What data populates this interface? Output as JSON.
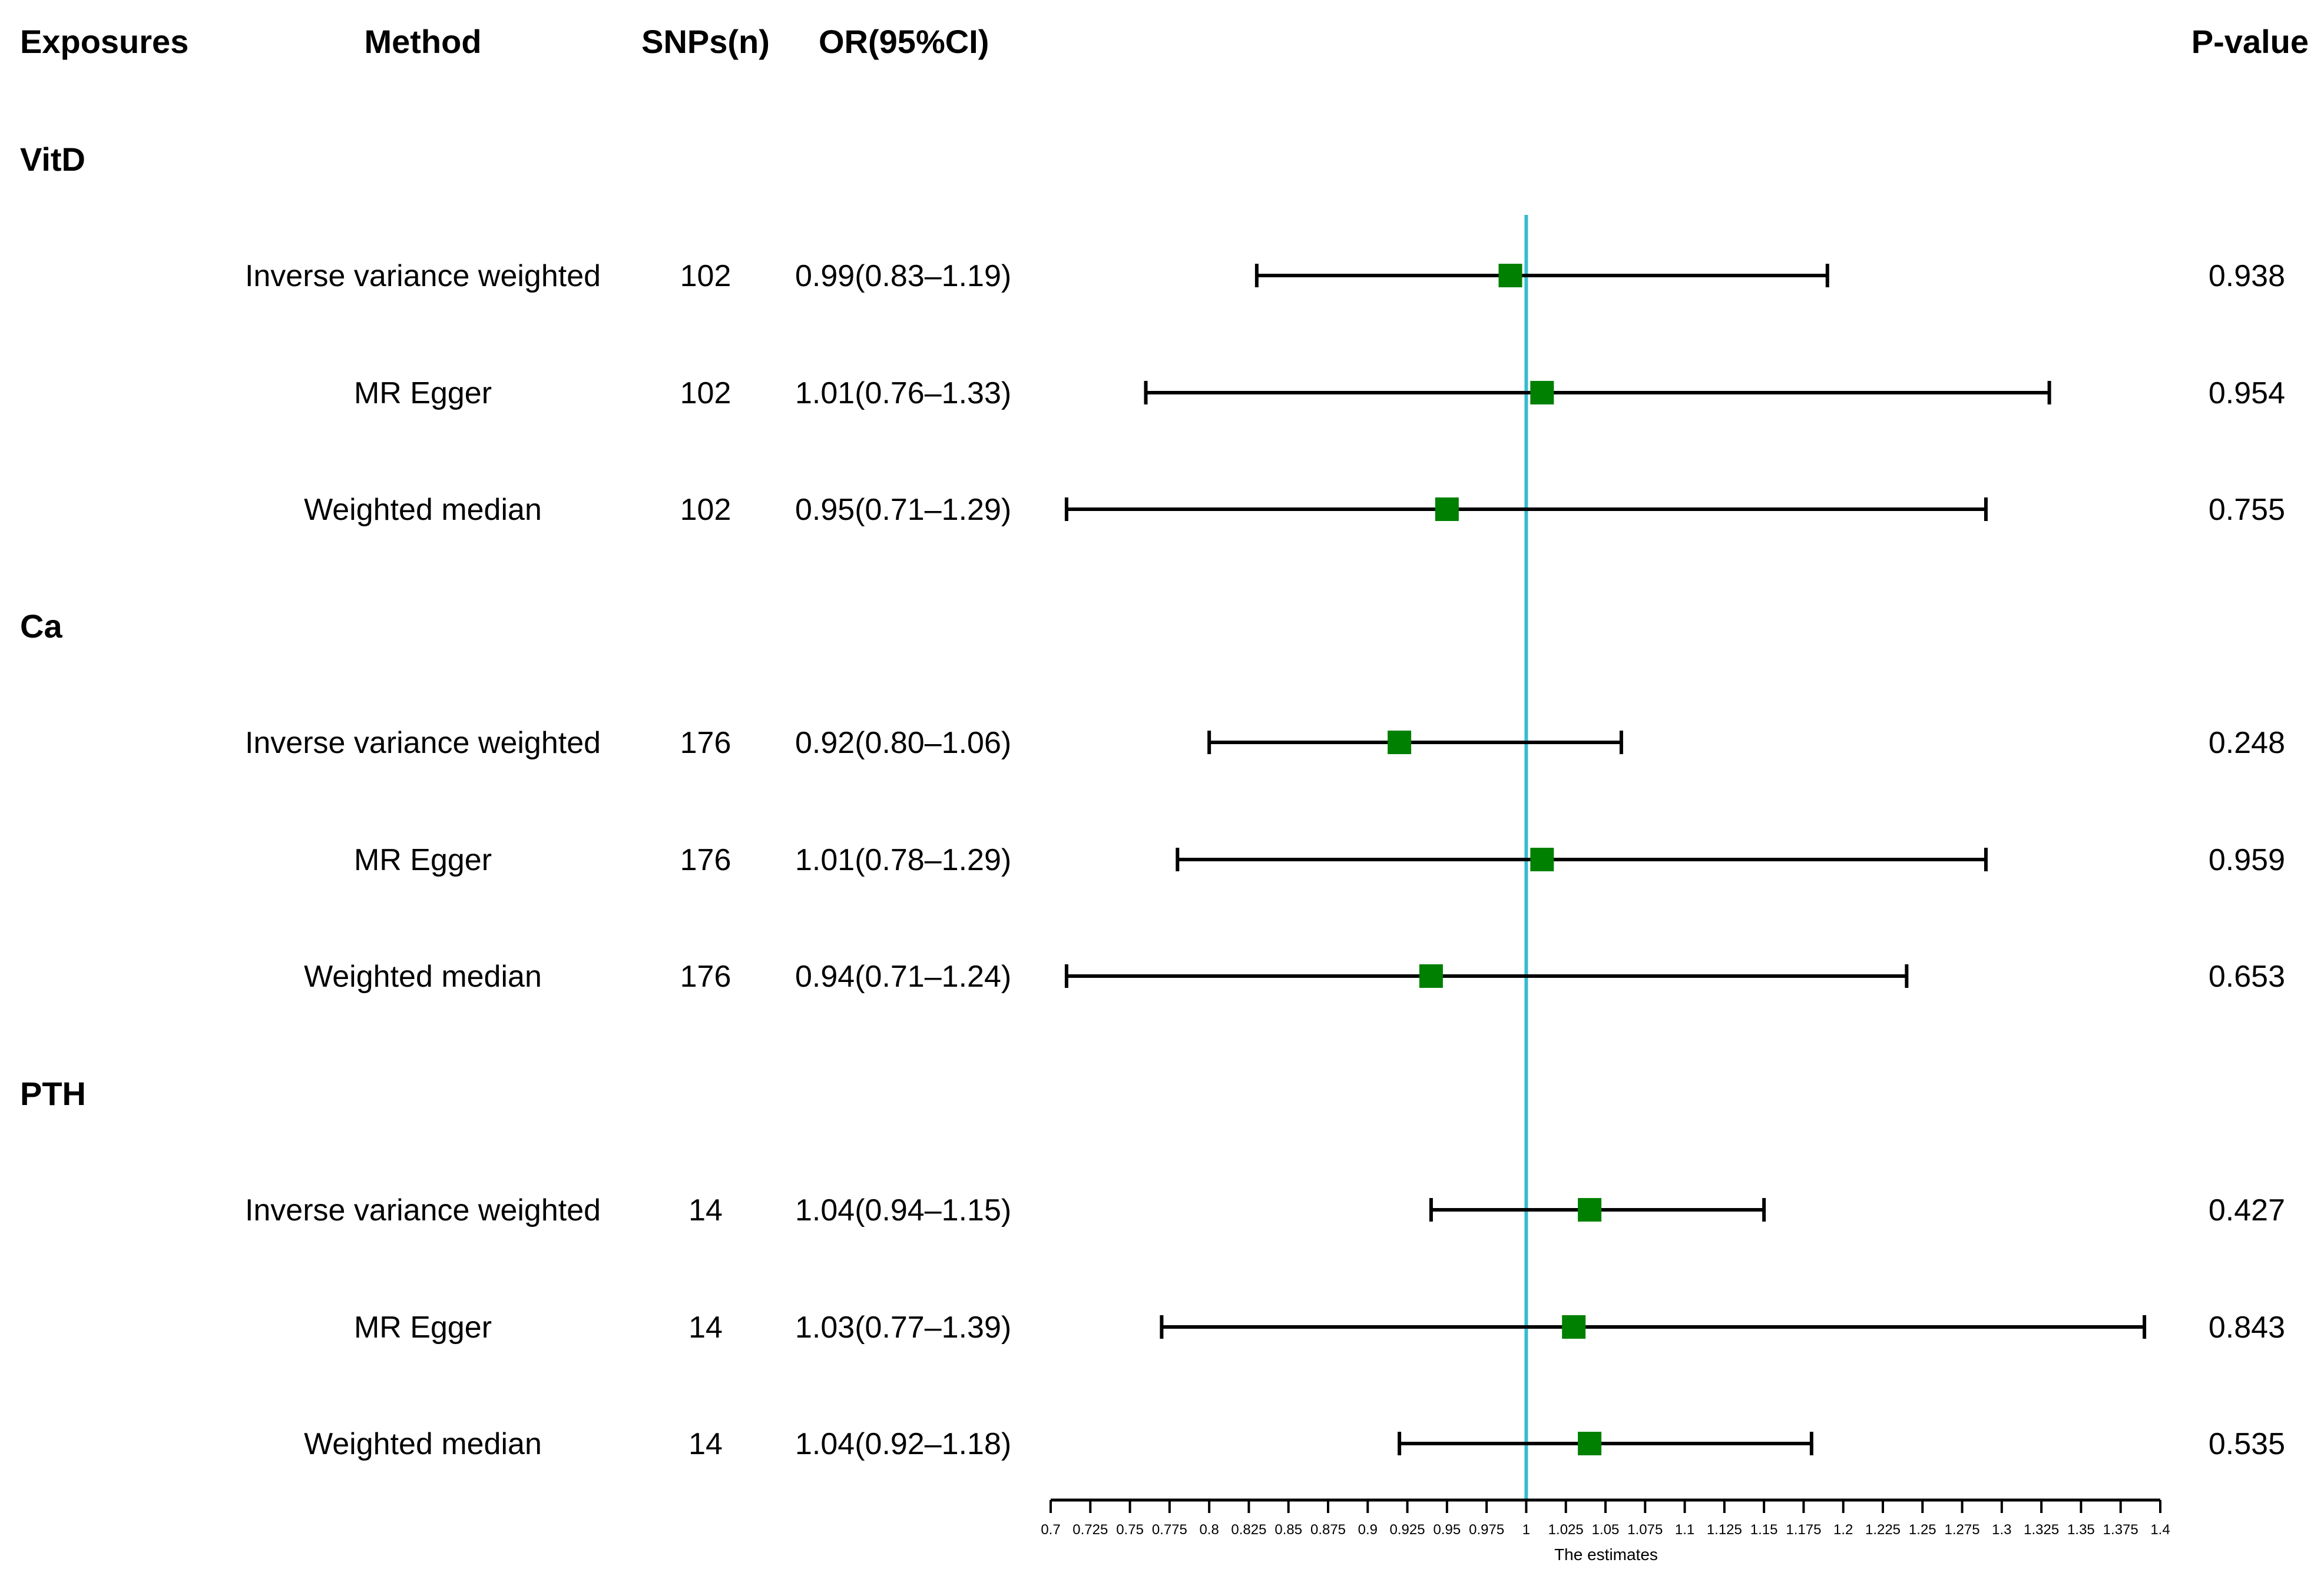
{
  "headers": {
    "exposures": "Exposures",
    "method": "Method",
    "snps": "SNPs(n)",
    "or": "OR(95%CI)",
    "pvalue": "P-value"
  },
  "groups": [
    {
      "name": "VitD",
      "rows": [
        {
          "method": "Inverse variance weighted",
          "snps": "102",
          "or_text": "0.99(0.83–1.19)",
          "or": 0.99,
          "lo": 0.83,
          "hi": 1.19,
          "p": "0.938"
        },
        {
          "method": "MR Egger",
          "snps": "102",
          "or_text": "1.01(0.76–1.33)",
          "or": 1.01,
          "lo": 0.76,
          "hi": 1.33,
          "p": "0.954"
        },
        {
          "method": "Weighted median",
          "snps": "102",
          "or_text": "0.95(0.71–1.29)",
          "or": 0.95,
          "lo": 0.71,
          "hi": 1.29,
          "p": "0.755"
        }
      ]
    },
    {
      "name": "Ca",
      "rows": [
        {
          "method": "Inverse variance weighted",
          "snps": "176",
          "or_text": "0.92(0.80–1.06)",
          "or": 0.92,
          "lo": 0.8,
          "hi": 1.06,
          "p": "0.248"
        },
        {
          "method": "MR Egger",
          "snps": "176",
          "or_text": "1.01(0.78–1.29)",
          "or": 1.01,
          "lo": 0.78,
          "hi": 1.29,
          "p": "0.959"
        },
        {
          "method": "Weighted median",
          "snps": "176",
          "or_text": "0.94(0.71–1.24)",
          "or": 0.94,
          "lo": 0.71,
          "hi": 1.24,
          "p": "0.653"
        }
      ]
    },
    {
      "name": "PTH",
      "rows": [
        {
          "method": "Inverse variance weighted",
          "snps": "14",
          "or_text": "1.04(0.94–1.15)",
          "or": 1.04,
          "lo": 0.94,
          "hi": 1.15,
          "p": "0.427"
        },
        {
          "method": "MR Egger",
          "snps": "14",
          "or_text": "1.03(0.77–1.39)",
          "or": 1.03,
          "lo": 0.77,
          "hi": 1.39,
          "p": "0.843"
        },
        {
          "method": "Weighted median",
          "snps": "14",
          "or_text": "1.04(0.92–1.18)",
          "or": 1.04,
          "lo": 0.92,
          "hi": 1.18,
          "p": "0.535"
        }
      ]
    }
  ],
  "colors": {
    "point": "#008000",
    "reference_line": "#36bcd0",
    "line": "#000000"
  },
  "chart_data": {
    "type": "forest",
    "xlabel": "The estimates",
    "xlim": [
      0.7,
      1.4
    ],
    "reference_value": 1,
    "tick_labels": [
      "0.7",
      "0.725",
      "0.75",
      "0.775",
      "0.8",
      "0.825",
      "0.85",
      "0.875",
      "0.9",
      "0.925",
      "0.95",
      "0.975",
      "1",
      "1.025",
      "1.05",
      "1.075",
      "1.1",
      "1.125",
      "1.15",
      "1.175",
      "1.2",
      "1.225",
      "1.25",
      "1.275",
      "1.3",
      "1.325",
      "1.35",
      "1.375",
      "1.4"
    ],
    "series": [
      {
        "name": "VitD",
        "methods": [
          "Inverse variance weighted",
          "MR Egger",
          "Weighted median"
        ],
        "or": [
          0.99,
          1.01,
          0.95
        ],
        "lower": [
          0.83,
          0.76,
          0.71
        ],
        "upper": [
          1.19,
          1.33,
          1.29
        ]
      },
      {
        "name": "Ca",
        "methods": [
          "Inverse variance weighted",
          "MR Egger",
          "Weighted median"
        ],
        "or": [
          0.92,
          1.01,
          0.94
        ],
        "lower": [
          0.8,
          0.78,
          0.71
        ],
        "upper": [
          1.06,
          1.29,
          1.24
        ]
      },
      {
        "name": "PTH",
        "methods": [
          "Inverse variance weighted",
          "MR Egger",
          "Weighted median"
        ],
        "or": [
          1.04,
          1.03,
          1.04
        ],
        "lower": [
          0.94,
          0.77,
          0.92
        ],
        "upper": [
          1.15,
          1.39,
          1.18
        ]
      }
    ]
  }
}
